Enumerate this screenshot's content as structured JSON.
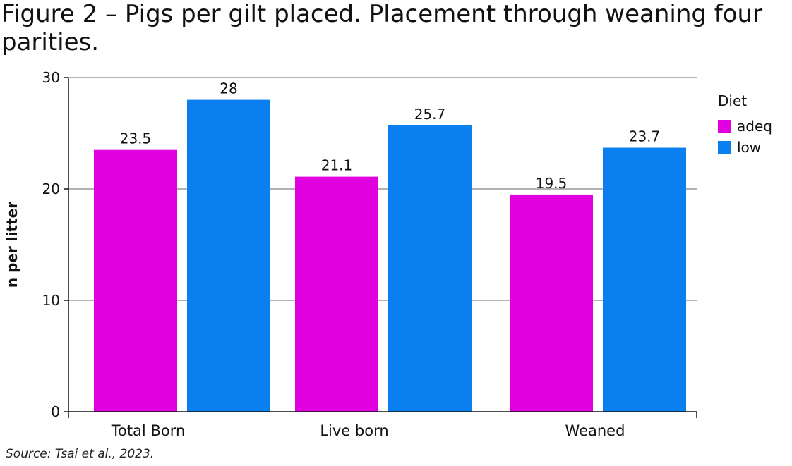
{
  "chart_data": {
    "type": "bar",
    "title": "Figure 2 – Pigs per gilt placed. Placement through weaning four parities.",
    "xlabel": "",
    "ylabel": "n per litter",
    "ylim": [
      0,
      30
    ],
    "yticks": [
      0,
      10,
      20,
      30
    ],
    "grid": true,
    "categories": [
      "Total Born",
      "Live born",
      "Weaned"
    ],
    "series": [
      {
        "name": "adeq",
        "color": "#e000e0",
        "values": [
          23.5,
          21.1,
          19.5
        ],
        "labels": [
          "23.5",
          "21.1",
          "19.5"
        ]
      },
      {
        "name": "low",
        "color": "#0a7ff0",
        "values": [
          28,
          25.7,
          23.7
        ],
        "labels": [
          "28",
          "25.7",
          "23.7"
        ]
      }
    ],
    "legend": {
      "title": "Diet",
      "position": "top-right"
    },
    "source": "Source: Tsai et al., 2023."
  }
}
